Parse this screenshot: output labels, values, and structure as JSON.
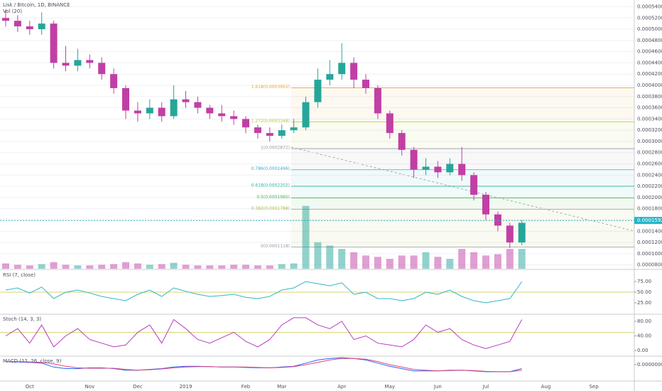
{
  "chart_data": [
    {
      "type": "candlestick",
      "title": "Lisk / Bitcoin, 1D, BINANCE",
      "categories": [
        null,
        null,
        "Oct",
        null,
        null,
        null,
        null,
        "Nov",
        null,
        null,
        null,
        "Dec",
        null,
        null,
        null,
        "2019",
        null,
        null,
        null,
        null,
        "Feb",
        null,
        null,
        "Mar",
        null,
        null,
        null,
        null,
        "Apr",
        null,
        null,
        null,
        "May",
        null,
        null,
        null,
        "Jun",
        null,
        null,
        null,
        "Jul",
        null,
        null,
        null,
        null,
        "Aug",
        null,
        null,
        null,
        "Sep",
        null,
        null,
        null
      ],
      "open": [
        0.00052,
        0.000515,
        0.000505,
        0.0005,
        0.00051,
        0.00044,
        0.000435,
        0.000445,
        0.00044,
        0.00042,
        0.000395,
        0.000355,
        0.00035,
        0.00036,
        0.000345,
        0.000375,
        0.00037,
        0.00036,
        0.00035,
        0.000345,
        0.00034,
        0.000325,
        0.000315,
        0.00031,
        0.00032,
        0.000325,
        0.00037,
        0.00041,
        0.00042,
        0.00044,
        0.00041,
        0.000395,
        0.00035,
        0.000315,
        0.000285,
        0.00025,
        0.000255,
        0.000245,
        0.00026,
        0.00024,
        0.000205,
        0.00017,
        0.00015,
        0.00012,
        null,
        null,
        null,
        null,
        null,
        null,
        null,
        null,
        null
      ],
      "high": [
        0.000535,
        0.000525,
        0.000515,
        0.00053,
        0.000515,
        0.00047,
        0.000465,
        0.000455,
        0.00045,
        0.00043,
        0.0004,
        0.00037,
        0.000375,
        0.00037,
        0.0004,
        0.00039,
        0.00038,
        0.000365,
        0.000365,
        0.000355,
        0.000345,
        0.00033,
        0.000325,
        0.00033,
        0.00034,
        0.00038,
        0.00043,
        0.000445,
        0.000475,
        0.00045,
        0.00042,
        0.0004,
        0.000355,
        0.00032,
        0.00029,
        0.00027,
        0.000265,
        0.00027,
        0.00029,
        0.000245,
        0.00021,
        0.000175,
        0.000155,
        0.00016,
        null,
        null,
        null,
        null,
        null,
        null,
        null,
        null,
        null
      ],
      "low": [
        0.000505,
        0.000495,
        0.00049,
        0.00049,
        0.00043,
        0.000425,
        0.000425,
        0.00043,
        0.00041,
        0.000385,
        0.00034,
        0.000335,
        0.00034,
        0.000335,
        0.00034,
        0.00036,
        0.00035,
        0.00034,
        0.000335,
        0.00033,
        0.000315,
        0.000305,
        0.0003,
        0.000305,
        0.000315,
        0.00032,
        0.00036,
        0.0004,
        0.00041,
        0.000395,
        0.000385,
        0.00034,
        0.000305,
        0.000275,
        0.000235,
        0.00024,
        0.000235,
        0.00024,
        0.00023,
        0.000195,
        0.00016,
        0.00014,
        0.00011,
        0.000115,
        null,
        null,
        null,
        null,
        null,
        null,
        null,
        null,
        null
      ],
      "close": [
        0.000515,
        0.000505,
        0.0005,
        0.00051,
        0.00044,
        0.000435,
        0.000445,
        0.00044,
        0.00042,
        0.000395,
        0.000355,
        0.00035,
        0.00036,
        0.000345,
        0.000375,
        0.00037,
        0.00036,
        0.00035,
        0.000345,
        0.00034,
        0.000325,
        0.000315,
        0.00031,
        0.00032,
        0.000325,
        0.00037,
        0.00041,
        0.00042,
        0.00044,
        0.00041,
        0.000395,
        0.00035,
        0.000315,
        0.000285,
        0.00025,
        0.000255,
        0.000245,
        0.00026,
        0.00024,
        0.000205,
        0.00017,
        0.00015,
        0.00012,
        0.000155,
        null,
        null,
        null,
        null,
        null,
        null,
        null,
        null,
        null
      ],
      "up_color": "#26a69a",
      "down_color": "#c13fa5",
      "volume": {
        "label": "Vol (20)",
        "ylim": [
          0,
          100
        ],
        "values": [
          8,
          6,
          5,
          7,
          10,
          6,
          5,
          5,
          6,
          7,
          10,
          8,
          6,
          7,
          9,
          6,
          5,
          5,
          5,
          6,
          6,
          5,
          5,
          7,
          8,
          95,
          40,
          35,
          30,
          25,
          20,
          18,
          15,
          20,
          20,
          25,
          18,
          15,
          30,
          25,
          20,
          22,
          30,
          30,
          null,
          null,
          null,
          null,
          null,
          null,
          null,
          null,
          null
        ]
      },
      "ylim": [
        7.32e-05,
        0.000552
      ],
      "yticks": [
        {
          "value": 8e-05,
          "label": "0.0000800"
        },
        {
          "value": 0.0001,
          "label": "0.0001000"
        },
        {
          "value": 0.00012,
          "label": "0.0001200"
        },
        {
          "value": 0.00014,
          "label": "0.0001400"
        },
        {
          "value": 0.00016,
          "label": "0.0001600"
        },
        {
          "value": 0.00018,
          "label": "0.0001800"
        },
        {
          "value": 0.0002,
          "label": "0.0002000"
        },
        {
          "value": 0.00022,
          "label": "0.0002200"
        },
        {
          "value": 0.00024,
          "label": "0.0002400"
        },
        {
          "value": 0.00026,
          "label": "0.0002600"
        },
        {
          "value": 0.00028,
          "label": "0.0002800"
        },
        {
          "value": 0.0003,
          "label": "0.0003000"
        },
        {
          "value": 0.00032,
          "label": "0.0003200"
        },
        {
          "value": 0.00034,
          "label": "0.0003400"
        },
        {
          "value": 0.00036,
          "label": "0.0003600"
        },
        {
          "value": 0.00038,
          "label": "0.0003800"
        },
        {
          "value": 0.0004,
          "label": "0.0004000"
        },
        {
          "value": 0.00042,
          "label": "0.0004200"
        },
        {
          "value": 0.00044,
          "label": "0.0004400"
        },
        {
          "value": 0.00046,
          "label": "0.0004600"
        },
        {
          "value": 0.00048,
          "label": "0.0004800"
        },
        {
          "value": 0.0005,
          "label": "0.0005000"
        },
        {
          "value": 0.00052,
          "label": "0.0005200"
        },
        {
          "value": 0.00054,
          "label": "0.0005400"
        }
      ],
      "grid": true,
      "fib_levels": [
        {
          "label": "1.618(0.0003955)",
          "value": 0.0003955,
          "color": "#e0a63a"
        },
        {
          "label": "1.272(0.0003348)",
          "value": 0.0003348,
          "color": "#b7c33a"
        },
        {
          "label": "1(0.0002872)",
          "value": 0.0002872,
          "color": "#9598a1"
        },
        {
          "label": "0.786(0.0002496)",
          "value": 0.0002496,
          "color": "#3fa7c8"
        },
        {
          "label": "0.618(0.0002202)",
          "value": 0.0002202,
          "color": "#2bb5a0"
        },
        {
          "label": "0.5(0.0001995)",
          "value": 0.0001995,
          "color": "#4caf50"
        },
        {
          "label": "0.382(0.0001788)",
          "value": 0.0001788,
          "color": "#a8b83a"
        },
        {
          "label": "0(0.0001118)",
          "value": 0.0001118,
          "color": "#9598a1"
        }
      ],
      "last_price": {
        "value": 0.0001592,
        "label": "0.0001592",
        "color": "#26b5c9"
      }
    },
    {
      "type": "line",
      "title": "RSI (7, close)",
      "guide": 50,
      "guide_color": "#c9c94a",
      "series": [
        {
          "color": "#2fb8c4",
          "values": [
            55,
            60,
            48,
            62,
            35,
            50,
            55,
            48,
            40,
            35,
            30,
            45,
            55,
            40,
            60,
            52,
            45,
            40,
            42,
            45,
            38,
            35,
            40,
            55,
            60,
            75,
            70,
            65,
            72,
            45,
            50,
            35,
            35,
            30,
            35,
            50,
            45,
            55,
            40,
            30,
            25,
            30,
            35,
            75,
            null,
            null,
            null,
            null,
            null,
            null,
            null,
            null,
            null
          ]
        }
      ],
      "ylim": [
        0,
        100
      ],
      "yticks": [
        {
          "value": 75,
          "label": "75.00"
        },
        {
          "value": 50,
          "label": "50.00"
        },
        {
          "value": 25,
          "label": "25.00"
        }
      ]
    },
    {
      "type": "line",
      "title": "Stoch (14, 3, 3)",
      "guide": 50,
      "guide_color": "#c9c94a",
      "series": [
        {
          "color": "#b63dbd",
          "values": [
            40,
            60,
            20,
            70,
            10,
            40,
            60,
            30,
            20,
            10,
            15,
            50,
            70,
            20,
            85,
            60,
            30,
            20,
            35,
            50,
            25,
            10,
            30,
            70,
            90,
            90,
            70,
            60,
            80,
            30,
            40,
            20,
            15,
            10,
            30,
            70,
            50,
            60,
            30,
            15,
            5,
            15,
            25,
            85,
            null,
            null,
            null,
            null,
            null,
            null,
            null,
            null,
            null
          ]
        }
      ],
      "ylim": [
        -13.7,
        97.6
      ],
      "yticks": [
        {
          "value": 80,
          "label": "80.00"
        },
        {
          "value": 40,
          "label": "40.00"
        },
        {
          "value": 0,
          "label": "0.00"
        }
      ]
    },
    {
      "type": "line",
      "title": "MACD (12, 26, close, 9)",
      "series": [
        {
          "color": "#2962ff",
          "values": [
            4e-06,
            3.5e-06,
            3e-06,
            2e-06,
            -3e-06,
            -5e-06,
            -5e-06,
            -4e-06,
            -4e-06,
            -5e-06,
            -7e-06,
            -7e-06,
            -6e-06,
            -5e-06,
            -3e-06,
            -2e-06,
            -2e-06,
            -2.5e-06,
            -3e-06,
            -3e-06,
            -3.5e-06,
            -4e-06,
            -4e-06,
            -3e-06,
            -2e-06,
            2e-06,
            6e-06,
            8e-06,
            9e-06,
            8e-06,
            6e-06,
            2e-06,
            -2e-06,
            -5e-06,
            -8e-06,
            -8e-06,
            -8e-06,
            -7e-06,
            -7e-06,
            -8e-06,
            -9e-06,
            -9e-06,
            -9e-06,
            -5e-06,
            null,
            null,
            null,
            null,
            null,
            null,
            null,
            null,
            null
          ]
        },
        {
          "color": "#e0457b",
          "values": [
            4e-06,
            4e-06,
            3.5e-06,
            3e-06,
            1e-06,
            -2e-06,
            -4e-06,
            -4.5e-06,
            -4.5e-06,
            -4.5e-06,
            -6e-06,
            -7e-06,
            -6.5e-06,
            -5.5e-06,
            -4e-06,
            -3e-06,
            -2.5e-06,
            -2.5e-06,
            -3e-06,
            -3e-06,
            -3e-06,
            -3.5e-06,
            -4e-06,
            -3.5e-06,
            -2.5e-06,
            0,
            3e-06,
            6e-06,
            8e-06,
            8e-06,
            7e-06,
            4e-06,
            0,
            -3e-06,
            -6e-06,
            -7e-06,
            -8e-06,
            -7.5e-06,
            -7e-06,
            -7.5e-06,
            -8.5e-06,
            -9e-06,
            -9e-06,
            -7e-06,
            null,
            null,
            null,
            null,
            null,
            null,
            null,
            null,
            null
          ]
        }
      ],
      "ylim": [
        -2e-05,
        1e-05
      ],
      "yticks": [
        {
          "value": 0,
          "label": "0.0000000"
        }
      ]
    }
  ]
}
